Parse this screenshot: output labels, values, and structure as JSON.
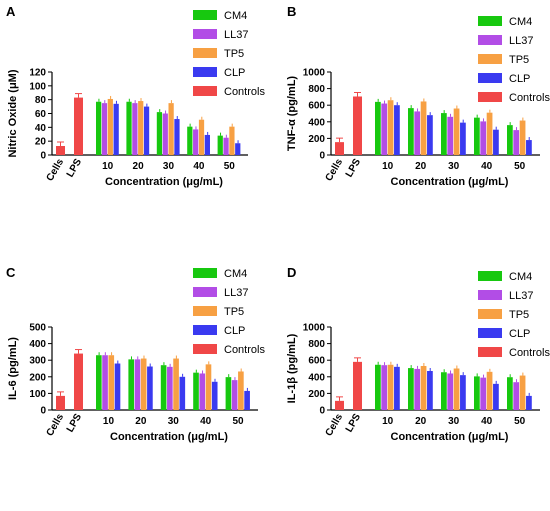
{
  "chart_data": [
    {
      "panel": "A",
      "type": "bar",
      "ylabel": "Nitric Oxide (μM)",
      "xlabel": "Concentration (μg/mL)",
      "ylim": [
        0,
        120
      ],
      "yticks": [
        0,
        20,
        40,
        60,
        80,
        100,
        120
      ],
      "controls": {
        "categories": [
          "Cells",
          "LPS"
        ],
        "values": [
          13,
          83
        ]
      },
      "categories": [
        "10",
        "20",
        "30",
        "40",
        "50"
      ],
      "series": [
        {
          "name": "CM4",
          "values": [
            77,
            77,
            62,
            41,
            28
          ]
        },
        {
          "name": "LL37",
          "values": [
            75,
            75,
            60,
            37,
            25
          ]
        },
        {
          "name": "TP5",
          "values": [
            81,
            78,
            75,
            51,
            41
          ]
        },
        {
          "name": "CLP",
          "values": [
            74,
            70,
            52,
            29,
            17
          ]
        }
      ],
      "legend_extra": "Controls"
    },
    {
      "panel": "B",
      "type": "bar",
      "ylabel": "TNF-α (pg/mL)",
      "xlabel": "Concentration (μg/mL)",
      "ylim": [
        0,
        1000
      ],
      "yticks": [
        0,
        200,
        400,
        600,
        800,
        1000
      ],
      "controls": {
        "categories": [
          "Cells",
          "LPS"
        ],
        "values": [
          155,
          705
        ]
      },
      "categories": [
        "10",
        "20",
        "30",
        "40",
        "50"
      ],
      "series": [
        {
          "name": "CM4",
          "values": [
            640,
            565,
            505,
            450,
            360
          ]
        },
        {
          "name": "LL37",
          "values": [
            620,
            525,
            460,
            405,
            300
          ]
        },
        {
          "name": "TP5",
          "values": [
            660,
            645,
            560,
            510,
            415
          ]
        },
        {
          "name": "CLP",
          "values": [
            600,
            480,
            390,
            305,
            180
          ]
        }
      ],
      "legend_extra": "Controls"
    },
    {
      "panel": "C",
      "type": "bar",
      "ylabel": "IL-6 (pg/mL)",
      "xlabel": "Concentration (μg/mL)",
      "ylim": [
        0,
        500
      ],
      "yticks": [
        0,
        100,
        200,
        300,
        400,
        500
      ],
      "controls": {
        "categories": [
          "Cells",
          "LPS"
        ],
        "values": [
          85,
          340
        ]
      },
      "categories": [
        "10",
        "20",
        "30",
        "40",
        "50"
      ],
      "series": [
        {
          "name": "CM4",
          "values": [
            330,
            305,
            270,
            225,
            198
          ]
        },
        {
          "name": "LL37",
          "values": [
            330,
            305,
            260,
            220,
            180
          ]
        },
        {
          "name": "TP5",
          "values": [
            330,
            310,
            310,
            275,
            232
          ]
        },
        {
          "name": "CLP",
          "values": [
            280,
            262,
            200,
            170,
            115
          ]
        }
      ],
      "legend_extra": "Controls"
    },
    {
      "panel": "D",
      "type": "bar",
      "ylabel": "IL-1β (pg/mL)",
      "xlabel": "Concentration (μg/mL)",
      "ylim": [
        0,
        1000
      ],
      "yticks": [
        0,
        200,
        400,
        600,
        800,
        1000
      ],
      "controls": {
        "categories": [
          "Cells",
          "LPS"
        ],
        "values": [
          110,
          580
        ]
      },
      "categories": [
        "10",
        "20",
        "30",
        "40",
        "50"
      ],
      "series": [
        {
          "name": "CM4",
          "values": [
            545,
            505,
            455,
            405,
            395
          ]
        },
        {
          "name": "LL37",
          "values": [
            540,
            495,
            440,
            390,
            335
          ]
        },
        {
          "name": "TP5",
          "values": [
            545,
            530,
            500,
            460,
            415
          ]
        },
        {
          "name": "CLP",
          "values": [
            520,
            470,
            420,
            315,
            170
          ]
        }
      ],
      "legend_extra": "Controls"
    }
  ],
  "colors": {
    "CM4": "#17c80f",
    "LL37": "#b24de6",
    "TP5": "#f7a043",
    "CLP": "#3a3af0",
    "Controls": "#f04747"
  }
}
